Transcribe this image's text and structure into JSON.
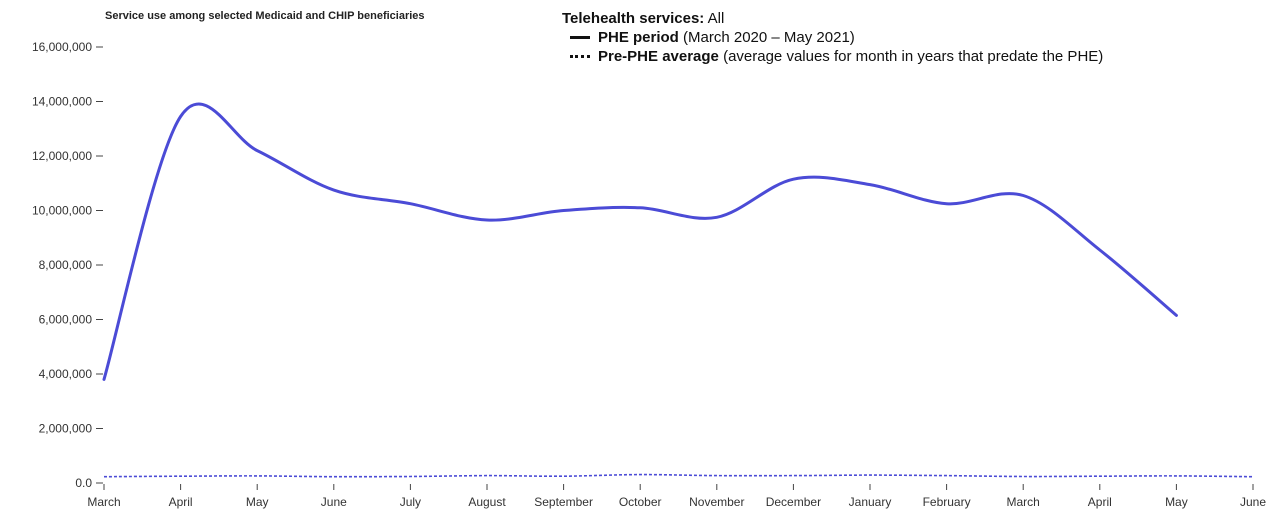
{
  "chart_data": {
    "type": "line",
    "title": "Service use among selected Medicaid and CHIP beneficiaries",
    "legend": {
      "heading_bold": "Telehealth services:",
      "heading_rest": " All",
      "entries": [
        {
          "bold": "PHE period",
          "rest": " (March 2020 – May 2021)",
          "style": "solid"
        },
        {
          "bold": "Pre-PHE average",
          "rest": " (average values for month in years that predate the PHE)",
          "style": "dotted"
        }
      ],
      "placement": "top-right"
    },
    "x_categories": [
      "March",
      "April",
      "May",
      "June",
      "July",
      "August",
      "September",
      "October",
      "November",
      "December",
      "January",
      "February",
      "March",
      "April",
      "May",
      "June"
    ],
    "y_ticks": [
      0,
      2000000,
      4000000,
      6000000,
      8000000,
      10000000,
      12000000,
      14000000,
      16000000
    ],
    "y_tick_labels": [
      "0.0",
      "2,000,000",
      "4,000,000",
      "6,000,000",
      "8,000,000",
      "10,000,000",
      "12,000,000",
      "14,000,000",
      "16,000,000"
    ],
    "ylim": [
      0,
      16000000
    ],
    "series": [
      {
        "name": "PHE period",
        "style": "solid",
        "color": "#4b4bd6",
        "values": [
          3800000,
          13450000,
          12200000,
          10750000,
          10250000,
          9650000,
          10000000,
          10100000,
          9750000,
          11150000,
          10950000,
          10250000,
          10550000,
          8550000,
          6150000
        ]
      },
      {
        "name": "Pre-PHE average",
        "style": "dotted",
        "color": "#4b4bd6",
        "values": [
          230000,
          250000,
          260000,
          230000,
          240000,
          270000,
          250000,
          310000,
          270000,
          270000,
          290000,
          270000,
          240000,
          250000,
          260000,
          230000
        ]
      }
    ]
  }
}
